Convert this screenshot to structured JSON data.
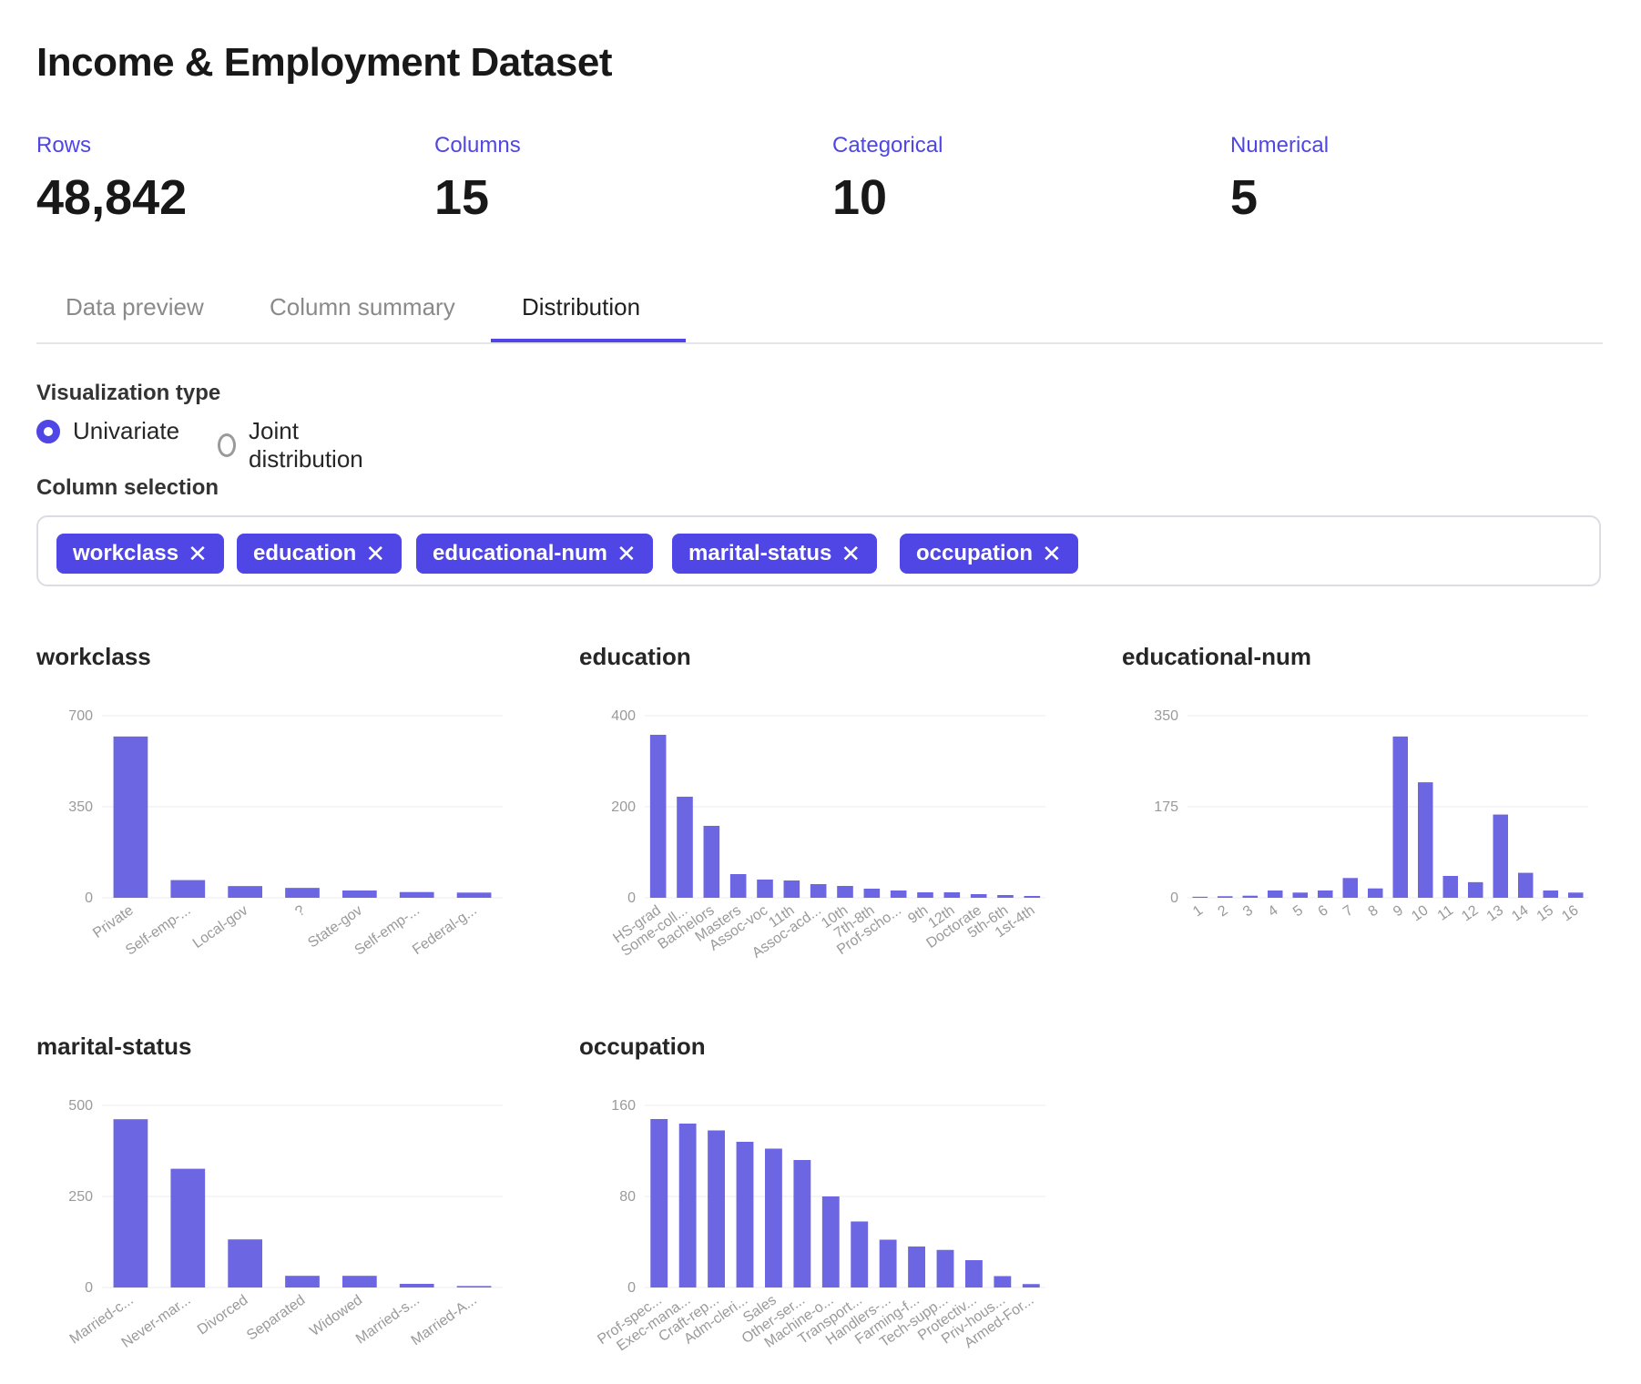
{
  "title": "Income & Employment Dataset",
  "stats": [
    {
      "label": "Rows",
      "value": "48,842"
    },
    {
      "label": "Columns",
      "value": "15"
    },
    {
      "label": "Categorical",
      "value": "10"
    },
    {
      "label": "Numerical",
      "value": "5"
    }
  ],
  "tabs": [
    "Data preview",
    "Column summary",
    "Distribution"
  ],
  "active_tab": "Distribution",
  "viz_type": {
    "label": "Visualization type",
    "options": [
      "Univariate",
      "Joint distribution"
    ],
    "selected": "Univariate"
  },
  "column_selection": {
    "label": "Column selection",
    "chips": [
      "workclass",
      "education",
      "educational-num",
      "marital-status",
      "occupation"
    ],
    "remove_glyph": "✕"
  },
  "colors": {
    "accent": "#4f46e5",
    "bar": "#6c66e3",
    "grid": "#ececf0"
  },
  "chart_data": [
    {
      "title": "workclass",
      "type": "bar",
      "categories": [
        "Private",
        "Self-emp-...",
        "Local-gov",
        "?",
        "State-gov",
        "Self-emp-...",
        "Federal-g..."
      ],
      "values": [
        620,
        68,
        45,
        38,
        28,
        22,
        20
      ],
      "ylim": [
        0,
        700
      ],
      "yticks": [
        "0",
        "350",
        "700"
      ]
    },
    {
      "title": "education",
      "type": "bar",
      "categories": [
        "HS-grad",
        "Some-coll...",
        "Bachelors",
        "Masters",
        "Assoc-voc",
        "11th",
        "Assoc-acd...",
        "10th",
        "7th-8th",
        "Prof-scho...",
        "9th",
        "12th",
        "Doctorate",
        "5th-6th",
        "1st-4th"
      ],
      "values": [
        358,
        222,
        158,
        52,
        40,
        38,
        30,
        26,
        20,
        16,
        12,
        12,
        8,
        6,
        4
      ],
      "ylim": [
        0,
        400
      ],
      "yticks": [
        "0",
        "200",
        "400"
      ]
    },
    {
      "title": "educational-num",
      "type": "bar",
      "categories": [
        "1",
        "2",
        "3",
        "4",
        "5",
        "6",
        "7",
        "8",
        "9",
        "10",
        "11",
        "12",
        "13",
        "14",
        "15",
        "16"
      ],
      "values": [
        2,
        3,
        4,
        14,
        10,
        14,
        38,
        18,
        310,
        222,
        42,
        30,
        160,
        48,
        14,
        10
      ],
      "ylim": [
        0,
        350
      ],
      "yticks": [
        "0",
        "175",
        "350"
      ]
    },
    {
      "title": "marital-status",
      "type": "bar",
      "categories": [
        "Married-c...",
        "Never-mar...",
        "Divorced",
        "Separated",
        "Widowed",
        "Married-s...",
        "Married-A..."
      ],
      "values": [
        462,
        326,
        132,
        32,
        32,
        10,
        4
      ],
      "ylim": [
        0,
        500
      ],
      "yticks": [
        "0",
        "250",
        "500"
      ]
    },
    {
      "title": "occupation",
      "type": "bar",
      "categories": [
        "Prof-spec...",
        "Exec-mana...",
        "Craft-rep...",
        "Adm-cleri...",
        "Sales",
        "Other-ser...",
        "Machine-o...",
        "Transport...",
        "Handlers-...",
        "Farming-f...",
        "Tech-supp...",
        "Protectiv...",
        "Priv-hous...",
        "Armed-For..."
      ],
      "values": [
        148,
        144,
        138,
        128,
        122,
        112,
        80,
        58,
        42,
        36,
        33,
        24,
        10,
        3
      ],
      "ylim": [
        0,
        160
      ],
      "yticks": [
        "0",
        "80",
        "160"
      ]
    }
  ]
}
